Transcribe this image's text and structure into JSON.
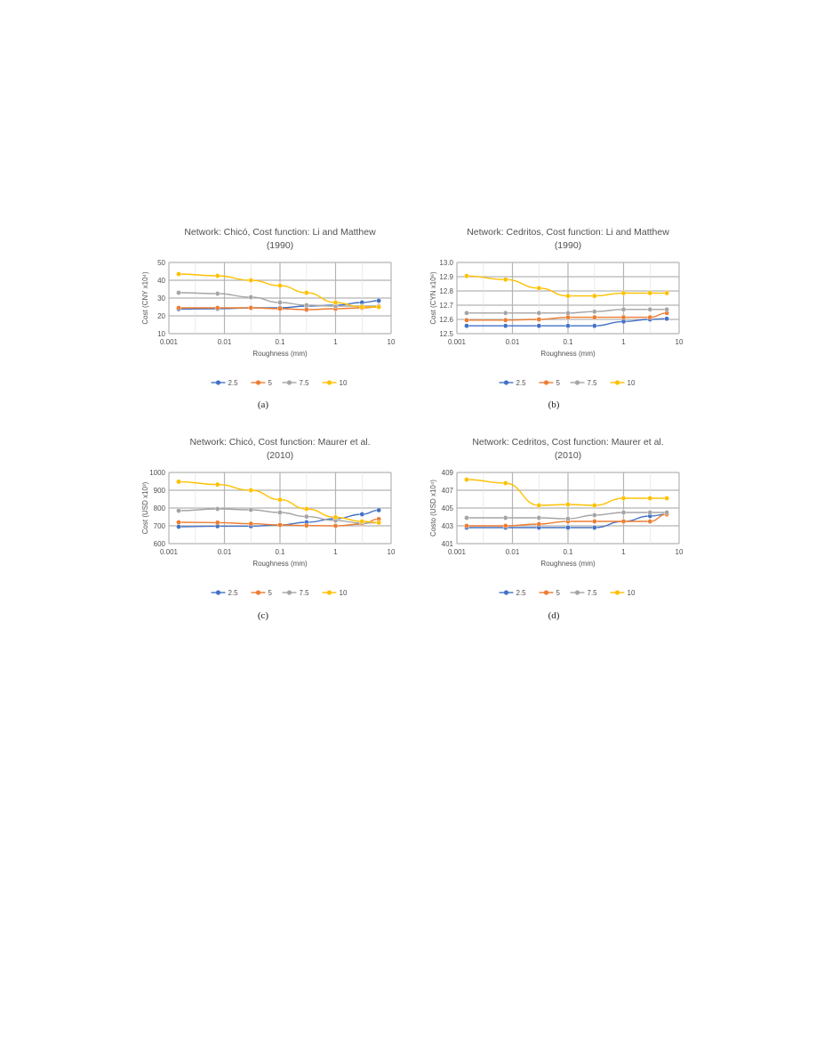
{
  "palette": {
    "2.5": "#4472C4",
    "5": "#ED7D31",
    "7.5": "#A5A5A5",
    "10": "#FFC000"
  },
  "chart_data": [
    {
      "type": "line",
      "title": [
        "Network: Chicó, Cost function: Li and Matthew",
        "(1990)"
      ],
      "xlabel": "Roughness (mm)",
      "ylabel": "Cost (CNY x10⁴)",
      "xscale": "log",
      "xlim": [
        0.001,
        10
      ],
      "xticks": [
        "0.001",
        "0.01",
        "0.1",
        "1",
        "10"
      ],
      "ylim": [
        10,
        50
      ],
      "yticks": [
        "10",
        "20",
        "30",
        "40",
        "50"
      ],
      "grid": true,
      "legend": "bottom",
      "caption": "(a)",
      "x": [
        0.0015,
        0.0075,
        0.03,
        0.1,
        0.3,
        1,
        3,
        6
      ],
      "series": [
        {
          "name": "2.5",
          "values": [
            23.8,
            24,
            24.5,
            24.5,
            25.5,
            26,
            27.5,
            28.5
          ]
        },
        {
          "name": "5",
          "values": [
            24.5,
            24.5,
            24.5,
            24,
            23.5,
            24,
            24.5,
            25
          ]
        },
        {
          "name": "7.5",
          "values": [
            33,
            32.5,
            30.5,
            27.5,
            26,
            25.5,
            25.5,
            25.5
          ]
        },
        {
          "name": "10",
          "values": [
            43.5,
            42.5,
            40,
            37,
            33,
            27.5,
            25,
            25
          ]
        }
      ]
    },
    {
      "type": "line",
      "title": [
        "Network: Cedritos, Cost function: Li and Matthew",
        "(1990)"
      ],
      "xlabel": "Roughness (mm)",
      "ylabel": "Cost (CYN x10⁶)",
      "xscale": "log",
      "xlim": [
        0.001,
        10
      ],
      "xticks": [
        "0.001",
        "0.01",
        "0.1",
        "1",
        "10"
      ],
      "ylim": [
        12.5,
        13.0
      ],
      "yticks": [
        "12.5",
        "12.6",
        "12.7",
        "12.8",
        "12.9",
        "13.0"
      ],
      "grid": true,
      "legend": "bottom",
      "caption": "(b)",
      "x": [
        0.0015,
        0.0075,
        0.03,
        0.1,
        0.3,
        1,
        3,
        6
      ],
      "series": [
        {
          "name": "2.5",
          "values": [
            12.555,
            12.555,
            12.555,
            12.555,
            12.555,
            12.585,
            12.6,
            12.605
          ]
        },
        {
          "name": "5",
          "values": [
            12.595,
            12.595,
            12.6,
            12.615,
            12.615,
            12.615,
            12.615,
            12.645
          ]
        },
        {
          "name": "7.5",
          "values": [
            12.645,
            12.645,
            12.645,
            12.645,
            12.655,
            12.67,
            12.67,
            12.67
          ]
        },
        {
          "name": "10",
          "values": [
            12.905,
            12.88,
            12.82,
            12.765,
            12.765,
            12.785,
            12.785,
            12.785
          ]
        }
      ]
    },
    {
      "type": "line",
      "title": [
        "Network: Chicó, Cost function: Maurer et al.",
        "(2010)"
      ],
      "xlabel": "Roughness (mm)",
      "ylabel": "Cost (USD x10³)",
      "xscale": "log",
      "xlim": [
        0.001,
        10
      ],
      "xticks": [
        "0.001",
        "0.01",
        "0.1",
        "1",
        "10"
      ],
      "ylim": [
        600,
        1000
      ],
      "yticks": [
        "600",
        "700",
        "800",
        "900",
        "1000"
      ],
      "grid": true,
      "legend": "bottom",
      "caption": "(c)",
      "x": [
        0.0015,
        0.0075,
        0.03,
        0.1,
        0.3,
        1,
        3,
        6
      ],
      "series": [
        {
          "name": "2.5",
          "values": [
            695,
            698,
            698,
            705,
            720,
            740,
            765,
            788
          ]
        },
        {
          "name": "5",
          "values": [
            720,
            718,
            712,
            705,
            702,
            700,
            710,
            738
          ]
        },
        {
          "name": "7.5",
          "values": [
            785,
            795,
            790,
            775,
            752,
            730,
            715,
            718
          ]
        },
        {
          "name": "10",
          "values": [
            948,
            932,
            900,
            847,
            795,
            748,
            725,
            718
          ]
        }
      ]
    },
    {
      "type": "line",
      "title": [
        "Network: Cedritos, Cost function: Maurer et al.",
        "(2010)"
      ],
      "xlabel": "Roughness (mm)",
      "ylabel": "Costo (USD x10⁴)",
      "xscale": "log",
      "xlim": [
        0.001,
        10
      ],
      "xticks": [
        "0.001",
        "0.01",
        "0.1",
        "1",
        "10"
      ],
      "ylim": [
        401,
        409
      ],
      "yticks": [
        "401",
        "403",
        "405",
        "407",
        "409"
      ],
      "grid": true,
      "legend": "bottom",
      "caption": "(d)",
      "x": [
        0.0015,
        0.0075,
        0.03,
        0.1,
        0.3,
        1,
        3,
        6
      ],
      "series": [
        {
          "name": "2.5",
          "values": [
            402.8,
            402.8,
            402.8,
            402.8,
            402.8,
            403.5,
            404.1,
            404.3
          ]
        },
        {
          "name": "5",
          "values": [
            403.0,
            403.0,
            403.2,
            403.5,
            403.5,
            403.5,
            403.5,
            404.3
          ]
        },
        {
          "name": "7.5",
          "values": [
            403.9,
            403.9,
            403.9,
            403.8,
            404.2,
            404.5,
            404.5,
            404.5
          ]
        },
        {
          "name": "10",
          "values": [
            408.2,
            407.8,
            405.3,
            405.4,
            405.3,
            406.1,
            406.1,
            406.1
          ]
        }
      ]
    }
  ]
}
